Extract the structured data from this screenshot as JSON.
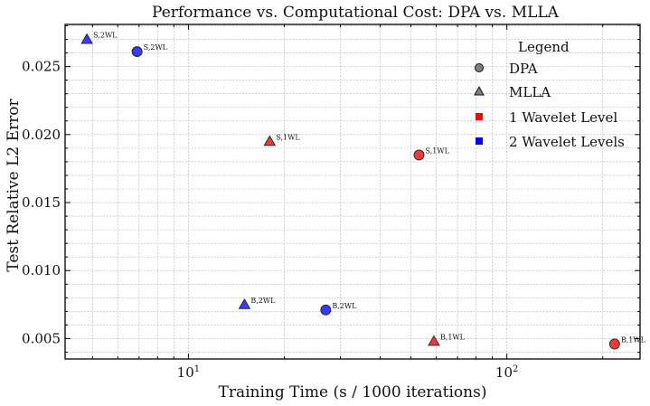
{
  "chart_data": {
    "type": "scatter",
    "title": "Performance vs. Computational Cost: DPA vs. MLLA",
    "xlabel": "Training Time (s / 1000 iterations)",
    "ylabel": "Test Relative L2 Error",
    "xscale": "log",
    "xlim": [
      4.1,
      262
    ],
    "ylim": [
      0.0035,
      0.0281
    ],
    "grid": true,
    "x_major_ticks": [
      10,
      100
    ],
    "x_tick_labels": [
      "10¹",
      "10²"
    ],
    "y_ticks": [
      0.005,
      0.01,
      0.015,
      0.02,
      0.025
    ],
    "y_tick_labels": [
      "0.005",
      "0.010",
      "0.015",
      "0.020",
      "0.025"
    ],
    "points": [
      {
        "label": "S,2WL",
        "x": 4.8,
        "y": 0.027,
        "method": "MLLA",
        "level": "2 Wavelet Levels"
      },
      {
        "label": "S,2WL",
        "x": 6.9,
        "y": 0.0261,
        "method": "DPA",
        "level": "2 Wavelet Levels"
      },
      {
        "label": "S,1WL",
        "x": 18,
        "y": 0.0195,
        "method": "MLLA",
        "level": "1 Wavelet Level"
      },
      {
        "label": "S,1WL",
        "x": 53,
        "y": 0.0185,
        "method": "DPA",
        "level": "1 Wavelet Level"
      },
      {
        "label": "B,2WL",
        "x": 15,
        "y": 0.0075,
        "method": "MLLA",
        "level": "2 Wavelet Levels"
      },
      {
        "label": "B,2WL",
        "x": 27,
        "y": 0.0071,
        "method": "DPA",
        "level": "2 Wavelet Levels"
      },
      {
        "label": "B,1WL",
        "x": 59,
        "y": 0.0048,
        "method": "MLLA",
        "level": "1 Wavelet Level"
      },
      {
        "label": "B,1WL",
        "x": 218,
        "y": 0.0046,
        "method": "DPA",
        "level": "1 Wavelet Level"
      }
    ],
    "legend": {
      "title": "Legend",
      "position": "top-right",
      "entries": [
        {
          "label": "DPA",
          "marker": "circle",
          "color": "#808080"
        },
        {
          "label": "MLLA",
          "marker": "triangle",
          "color": "#808080"
        },
        {
          "label": "1 Wavelet Level",
          "marker": "square",
          "color": "#ff0000"
        },
        {
          "label": "2 Wavelet Levels",
          "marker": "square",
          "color": "#0000ff"
        }
      ]
    },
    "colors": {
      "1 Wavelet Level": "#ef3a3a",
      "2 Wavelet Levels": "#3a3af0"
    }
  }
}
